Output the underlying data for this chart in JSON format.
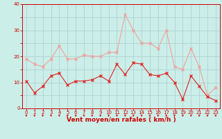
{
  "hours": [
    0,
    1,
    2,
    3,
    4,
    5,
    6,
    7,
    8,
    9,
    10,
    11,
    12,
    13,
    14,
    15,
    16,
    17,
    18,
    19,
    20,
    21,
    22,
    23
  ],
  "vent_moyen": [
    10.5,
    6,
    8.5,
    12.5,
    13.5,
    9,
    10.5,
    10.5,
    11,
    12.5,
    10.5,
    17,
    13,
    17.5,
    17,
    13,
    12.5,
    13.5,
    10,
    3.5,
    12.5,
    8.5,
    4.5,
    3
  ],
  "rafales": [
    19,
    17,
    16,
    19,
    24,
    19,
    19,
    20.5,
    20,
    20,
    21.5,
    21.5,
    36,
    30,
    25,
    25,
    23,
    30,
    16,
    15,
    23,
    16,
    5,
    8
  ],
  "line_color_moyen": "#dd2222",
  "line_color_rafales": "#f0a0a0",
  "marker": "x",
  "background_color": "#cceee8",
  "grid_color": "#aacccc",
  "xlabel": "Vent moyen/en rafales ( km/h )",
  "xlabel_color": "#cc0000",
  "tick_color": "#cc0000",
  "spine_color": "#cc0000",
  "arrow_color": "#cc0000",
  "ylim": [
    0,
    40
  ],
  "xlabel_fontsize": 6.5,
  "tick_fontsize": 5.0
}
